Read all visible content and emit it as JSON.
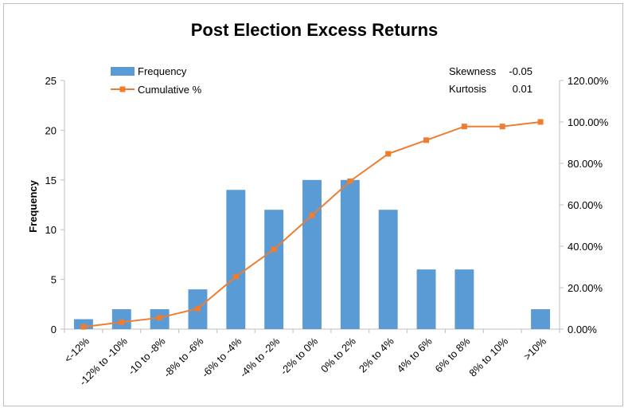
{
  "chart_data": {
    "type": "bar",
    "title": "Post Election Excess Returns",
    "ylabel": "Frequency",
    "xlabel": "",
    "categories": [
      "<-12%",
      "-12% to -10%",
      "-10 to -8%",
      "-8% to -6%",
      "-6% to -4%",
      "-4% to -2%",
      "-2% to 0%",
      "0% to 2%",
      "2% to 4%",
      "4% to 6%",
      "6% to 8%",
      "8% to 10%",
      ">10%"
    ],
    "series": [
      {
        "name": "Frequency",
        "type": "bar",
        "axis": "left",
        "color": "#5B9BD5",
        "values": [
          1,
          2,
          2,
          4,
          14,
          12,
          15,
          15,
          12,
          6,
          6,
          0,
          2
        ]
      },
      {
        "name": "Cumulative %",
        "type": "line",
        "axis": "right",
        "color": "#ED7D31",
        "marker": "square",
        "values": [
          1.1,
          3.3,
          5.5,
          9.9,
          25.3,
          38.5,
          54.9,
          71.4,
          84.6,
          91.2,
          97.8,
          97.8,
          100.0
        ]
      }
    ],
    "ylim": [
      0,
      25
    ],
    "yticks": [
      "0",
      "5",
      "10",
      "15",
      "20",
      "25"
    ],
    "y2lim": [
      0,
      120
    ],
    "y2ticks": [
      "0.00%",
      "20.00%",
      "40.00%",
      "60.00%",
      "80.00%",
      "100.00%",
      "120.00%"
    ],
    "legend_position": "top-left",
    "grid": false,
    "annotations": [
      {
        "label": "Skewness",
        "value": "-0.05"
      },
      {
        "label": "Kurtosis",
        "value": "0.01"
      }
    ]
  }
}
